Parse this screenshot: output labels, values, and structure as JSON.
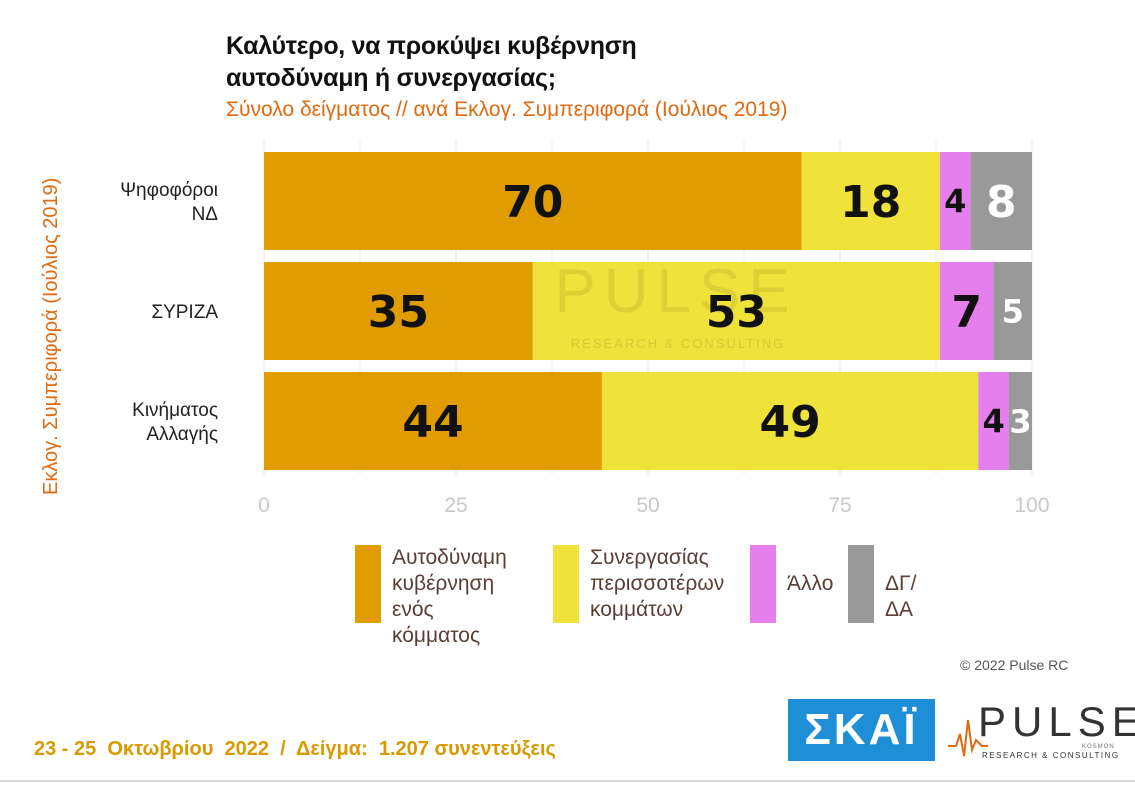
{
  "title_lines": [
    "Καλύτερο, να προκύψει κυβέρνηση",
    "αυτοδύναμη ή συνεργασίας;"
  ],
  "subtitle": "Σύνολο δείγματος // ανά Εκλογ. Συμπεριφορά (Ιούλιος 2019)",
  "yaxis_title": "Εκλογ. Συμπεριφορά (Ιούλιος 2019)",
  "copyright": "© 2022 Pulse RC",
  "footer": "23 - 25  Οκτωβρίου  2022  /  Δείγμα:  1.207 συνεντεύξεις",
  "logos": {
    "skai": "ΣΚΑΪ",
    "pulse": "PULSE",
    "pulse_sub": "RESEARCH & CONSULTING",
    "pulse_kosmon": "KOSMON"
  },
  "watermark": {
    "word": "PULSE",
    "sub": "RESEARCH & CONSULTING"
  },
  "chart_data": {
    "type": "bar",
    "orientation": "horizontal",
    "stacked": true,
    "categories": [
      [
        "Ψηφοφόροι",
        "ΝΔ"
      ],
      [
        "ΣΥΡΙΖΑ"
      ],
      [
        "Κινήματος",
        "Αλλαγής"
      ]
    ],
    "series": [
      {
        "name": "Αυτοδύναμη κυβέρνηση ενός κόμματος",
        "legend_lines": [
          "Αυτοδύναμη",
          "κυβέρνηση",
          "ενός κόμματος"
        ],
        "color": "#e19c00",
        "label_color": "#111111",
        "values": [
          70,
          35,
          44
        ]
      },
      {
        "name": "Συνεργασίας περισσοτέρων κομμάτων",
        "legend_lines": [
          "Συνεργασίας",
          "περισσοτέρων",
          "κομμάτων"
        ],
        "color": "#efe23a",
        "label_color": "#111111",
        "values": [
          18,
          53,
          49
        ]
      },
      {
        "name": "Άλλο",
        "legend_lines": [
          "Άλλο"
        ],
        "color": "#e57fee",
        "label_color": "#111111",
        "values": [
          4,
          7,
          4
        ]
      },
      {
        "name": "ΔΓ/ΔΑ",
        "legend_lines": [
          "ΔΓ/ΔΑ"
        ],
        "color": "#999999",
        "label_color": "#ffffff",
        "values": [
          8,
          5,
          3
        ]
      }
    ],
    "xlim": [
      0,
      100
    ],
    "xticks": [
      0,
      25,
      50,
      75,
      100
    ],
    "grid": true,
    "legend_position": "bottom"
  }
}
